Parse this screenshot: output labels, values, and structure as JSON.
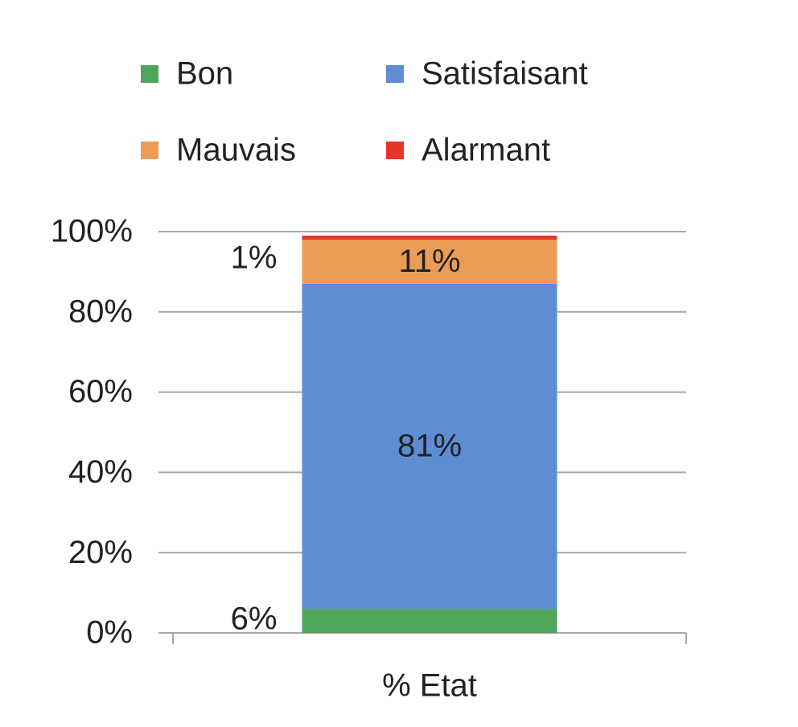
{
  "chart_data": {
    "type": "stacked_bar",
    "categories": [
      "% Etat"
    ],
    "series": [
      {
        "name": "Bon",
        "color": "#4ea65a",
        "values": [
          6
        ],
        "value_labels": [
          "6%"
        ]
      },
      {
        "name": "Satisfaisant",
        "color": "#5f8dd3",
        "values": [
          81
        ],
        "value_labels": [
          "81%"
        ]
      },
      {
        "name": "Mauvais",
        "color": "#eb9c56",
        "values": [
          11
        ],
        "value_labels": [
          "11%"
        ]
      },
      {
        "name": "Alarmant",
        "color": "#e8352a",
        "values": [
          1
        ],
        "value_labels": [
          "1%"
        ]
      }
    ],
    "ylim": [
      0,
      100
    ],
    "yticks": [
      {
        "value": 0,
        "label": "0%"
      },
      {
        "value": 20,
        "label": "20%"
      },
      {
        "value": 40,
        "label": "40%"
      },
      {
        "value": 60,
        "label": "60%"
      },
      {
        "value": 80,
        "label": "80%"
      },
      {
        "value": 100,
        "label": "100%"
      }
    ],
    "grid": true
  }
}
